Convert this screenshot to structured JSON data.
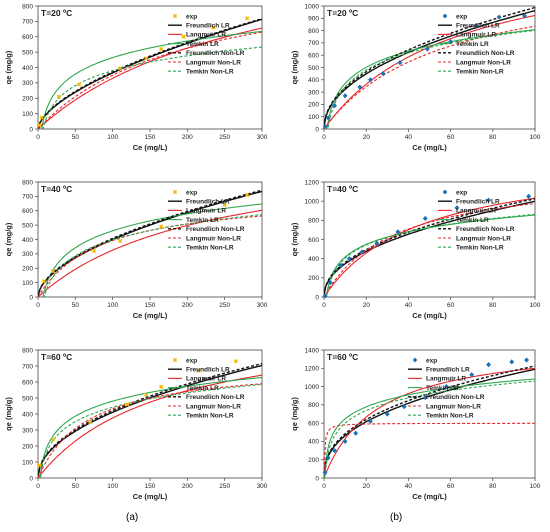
{
  "captions": {
    "left": "(a)",
    "right": "(b)"
  },
  "legend_labels": [
    "exp",
    "Freundlich LR",
    "Langmuir LR",
    "Temkin LR",
    "Freundlich Non-LR",
    "Langmuir Non-LR",
    "Temkin Non-LR"
  ],
  "colors": {
    "freundlich": "#111111",
    "langmuir": "#e8262b",
    "temkin": "#2fa84f",
    "exp_left": "#f5b700",
    "exp_right": "#1a6fb5"
  },
  "chart_data": [
    {
      "type": "line",
      "panel": "left",
      "row": 0,
      "title": "T=20 ºC",
      "xlabel": "Ce (mg/L)",
      "ylabel": "qe (mg/g)",
      "xlim": [
        0,
        300
      ],
      "ylim": [
        0,
        800
      ],
      "xticks": [
        0,
        50,
        100,
        150,
        200,
        250,
        300
      ],
      "yticks": [
        0,
        100,
        200,
        300,
        400,
        500,
        600,
        700,
        800
      ],
      "exp": {
        "x": [
          2,
          5,
          28,
          55,
          110,
          145,
          165,
          195,
          235,
          280
        ],
        "y": [
          25,
          75,
          210,
          290,
          395,
          460,
          520,
          600,
          660,
          720
        ]
      },
      "models": {
        "KF": 22.0,
        "nF": 0.61,
        "QL": 1300,
        "KL": 0.0034,
        "Lq": 1050,
        "LKL": 0.005,
        "BT": 155,
        "KT": 0.2,
        "BTn": 140,
        "KTn": 0.15
      }
    },
    {
      "type": "line",
      "panel": "right",
      "row": 0,
      "title": "T=20 ºC",
      "xlabel": "Ce (mg/L)",
      "ylabel": "qe (mg/g)",
      "xlim": [
        0,
        100
      ],
      "ylim": [
        0,
        1000
      ],
      "xticks": [
        0,
        20,
        40,
        60,
        80,
        100
      ],
      "yticks": [
        0,
        100,
        200,
        300,
        400,
        500,
        600,
        700,
        800,
        900,
        1000
      ],
      "exp": {
        "x": [
          0.5,
          2,
          5,
          10,
          17,
          22,
          28,
          36,
          49,
          60,
          72,
          83,
          95
        ],
        "y": [
          20,
          90,
          190,
          270,
          340,
          400,
          450,
          540,
          650,
          710,
          840,
          910,
          920
        ]
      },
      "models": {
        "KF": 108.0,
        "nF": 0.475,
        "QL": 1500,
        "KL": 0.016,
        "Lq": 1300,
        "LKL": 0.018,
        "BT": 190,
        "KT": 0.7,
        "BTn": 200,
        "KTn": 0.55
      }
    },
    {
      "type": "line",
      "panel": "left",
      "row": 1,
      "title": "T=40 ºC",
      "xlabel": "Ce (mg/L)",
      "ylabel": "qe (mg/g)",
      "xlim": [
        0,
        300
      ],
      "ylim": [
        0,
        800
      ],
      "xticks": [
        0,
        50,
        100,
        150,
        200,
        250,
        300
      ],
      "yticks": [
        0,
        100,
        200,
        300,
        400,
        500,
        600,
        700,
        800
      ],
      "exp": {
        "x": [
          8,
          20,
          75,
          110,
          165,
          250,
          280
        ],
        "y": [
          110,
          180,
          320,
          390,
          490,
          640,
          710
        ]
      },
      "models": {
        "KF": 31.0,
        "nF": 0.555,
        "QL": 1050,
        "KL": 0.0045,
        "Lq": 720,
        "LKL": 0.012,
        "BT": 170,
        "KT": 0.15,
        "BTn": 160,
        "KTn": 0.12
      }
    },
    {
      "type": "line",
      "panel": "right",
      "row": 1,
      "title": "T=40 ºC",
      "xlabel": "Ce (mg/L)",
      "ylabel": "qe (mg/g)",
      "xlim": [
        0,
        100
      ],
      "ylim": [
        0,
        1200
      ],
      "xticks": [
        0,
        20,
        40,
        60,
        80,
        100
      ],
      "yticks": [
        0,
        200,
        400,
        600,
        800,
        1000,
        1200
      ],
      "exp": {
        "x": [
          0.5,
          3,
          8,
          12,
          18,
          25,
          35,
          48,
          63,
          78,
          97
        ],
        "y": [
          10,
          150,
          330,
          400,
          470,
          560,
          680,
          820,
          930,
          1010,
          1050
        ]
      },
      "models": {
        "KF": 120.0,
        "nF": 0.46,
        "QL": 1500,
        "KL": 0.022,
        "Lq": 1300,
        "LKL": 0.03,
        "BT": 190,
        "KT": 0.9,
        "BTn": 200,
        "KTn": 0.75
      }
    },
    {
      "type": "line",
      "panel": "left",
      "row": 2,
      "title": "T=60 ºC",
      "xlabel": "Ce (mg/L)",
      "ylabel": "qe (mg/g)",
      "xlim": [
        0,
        300
      ],
      "ylim": [
        0,
        800
      ],
      "xticks": [
        0,
        50,
        100,
        150,
        200,
        250,
        300
      ],
      "yticks": [
        0,
        100,
        200,
        300,
        400,
        500,
        600,
        700,
        800
      ],
      "exp": {
        "x": [
          2,
          20,
          70,
          120,
          145,
          165,
          215,
          265
        ],
        "y": [
          80,
          240,
          350,
          460,
          520,
          570,
          670,
          730
        ]
      },
      "models": {
        "KF": 43.0,
        "nF": 0.49,
        "QL": 1000,
        "KL": 0.006,
        "Lq": 720,
        "LKL": 0.015,
        "BT": 135,
        "KT": 0.35,
        "BTn": 130,
        "KTn": 0.3
      }
    },
    {
      "type": "line",
      "panel": "right",
      "row": 2,
      "title": "T=60 ºC",
      "xlabel": "Ce (mg/L)",
      "ylabel": "qe (mg/g)",
      "xlim": [
        0,
        100
      ],
      "ylim": [
        0,
        1400
      ],
      "xticks": [
        0,
        20,
        40,
        60,
        80,
        100
      ],
      "yticks": [
        0,
        200,
        400,
        600,
        800,
        1000,
        1200,
        1400
      ],
      "exp": {
        "x": [
          0.5,
          2,
          5,
          10,
          15,
          22,
          30,
          38,
          48,
          58,
          70,
          78,
          89,
          96
        ],
        "y": [
          60,
          220,
          300,
          400,
          490,
          620,
          700,
          780,
          880,
          1000,
          1130,
          1240,
          1270,
          1290
        ]
      },
      "models": {
        "KF": 180.0,
        "nF": 0.41,
        "QL": 1500,
        "KL": 0.04,
        "Lq": 600,
        "LKL": 3.0,
        "BT": 190,
        "KT": 3.0,
        "BTn": 200,
        "KTn": 2.0
      }
    }
  ]
}
